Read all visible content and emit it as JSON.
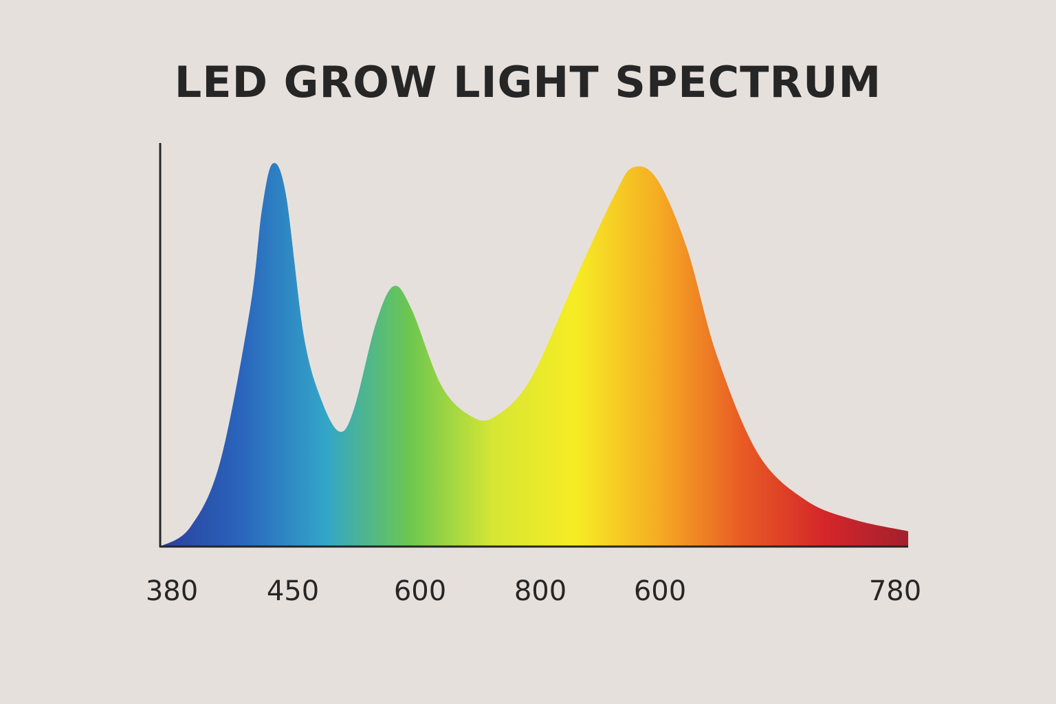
{
  "chart_data": {
    "type": "area",
    "title": "LED GROW LIGHT SPECTRUM",
    "xlabel": "",
    "ylabel": "",
    "x_tick_labels": [
      "380",
      "450",
      "600",
      "800",
      "600",
      "780"
    ],
    "x_tick_positions": [
      0,
      1,
      2,
      3,
      4,
      6
    ],
    "x_range": [
      0,
      6.25
    ],
    "ylim": [
      0,
      1
    ],
    "grid": false,
    "legend": "none",
    "series": [
      {
        "values": [
          [
            0.0,
            0.0
          ],
          [
            0.25,
            0.05
          ],
          [
            0.5,
            0.22
          ],
          [
            0.75,
            0.62
          ],
          [
            0.85,
            0.88
          ],
          [
            0.94,
            1.0
          ],
          [
            1.05,
            0.92
          ],
          [
            1.2,
            0.55
          ],
          [
            1.35,
            0.38
          ],
          [
            1.5,
            0.3
          ],
          [
            1.62,
            0.36
          ],
          [
            1.8,
            0.58
          ],
          [
            1.95,
            0.68
          ],
          [
            2.1,
            0.62
          ],
          [
            2.35,
            0.42
          ],
          [
            2.6,
            0.34
          ],
          [
            2.8,
            0.34
          ],
          [
            3.1,
            0.44
          ],
          [
            3.5,
            0.72
          ],
          [
            3.8,
            0.92
          ],
          [
            3.95,
            0.99
          ],
          [
            4.15,
            0.96
          ],
          [
            4.4,
            0.78
          ],
          [
            4.65,
            0.5
          ],
          [
            5.0,
            0.24
          ],
          [
            5.4,
            0.12
          ],
          [
            5.8,
            0.07
          ],
          [
            6.25,
            0.04
          ]
        ]
      }
    ],
    "gradient_colors": [
      "#2b3f9c",
      "#2a66bd",
      "#33a6c8",
      "#6cc74f",
      "#d6e634",
      "#f7ec24",
      "#f5ac23",
      "#e85b24",
      "#d4262a",
      "#a4202d"
    ],
    "axis_color": "#262626"
  }
}
